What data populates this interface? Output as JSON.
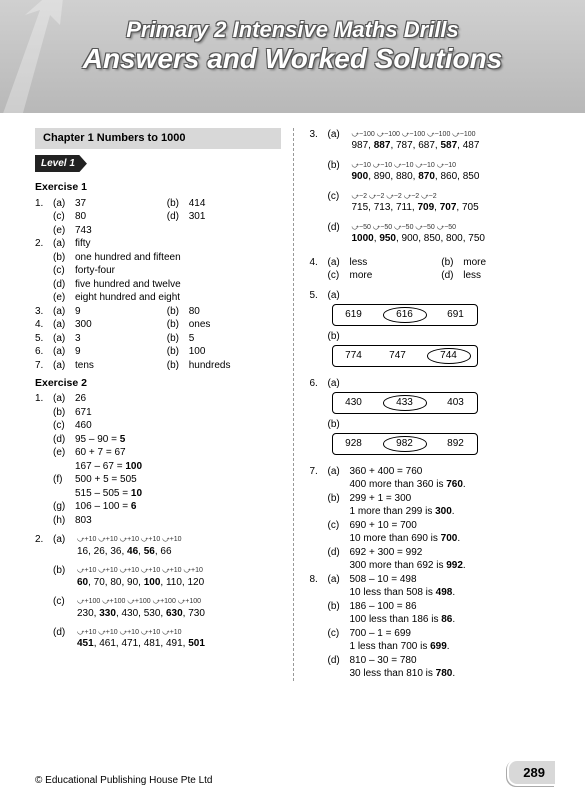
{
  "header": {
    "title1": "Primary 2 Intensive Maths Drills",
    "title2": "Answers and Worked Solutions"
  },
  "chapter": "Chapter 1   Numbers to 1000",
  "level": "Level 1",
  "left": {
    "ex1_title": "Exercise 1",
    "ex1": [
      {
        "n": "1.",
        "parts": [
          [
            "(a)",
            "37"
          ],
          [
            "(b)",
            "414"
          ],
          [
            "(c)",
            "80"
          ],
          [
            "(d)",
            "301"
          ],
          [
            "(e)",
            "743"
          ]
        ]
      },
      {
        "n": "2.",
        "parts": [
          [
            "(a)",
            "fifty"
          ],
          [
            "(b)",
            "one hundred and fifteen"
          ],
          [
            "(c)",
            "forty-four"
          ],
          [
            "(d)",
            "five hundred and twelve"
          ],
          [
            "(e)",
            "eight hundred and eight"
          ]
        ]
      },
      {
        "n": "3.",
        "parts": [
          [
            "(a)",
            "9"
          ],
          [
            "(b)",
            "80"
          ]
        ]
      },
      {
        "n": "4.",
        "parts": [
          [
            "(a)",
            "300"
          ],
          [
            "(b)",
            "ones"
          ]
        ]
      },
      {
        "n": "5.",
        "parts": [
          [
            "(a)",
            "3"
          ],
          [
            "(b)",
            "5"
          ]
        ]
      },
      {
        "n": "6.",
        "parts": [
          [
            "(a)",
            "9"
          ],
          [
            "(b)",
            "100"
          ]
        ]
      },
      {
        "n": "7.",
        "parts": [
          [
            "(a)",
            "tens"
          ],
          [
            "(b)",
            "hundreds"
          ]
        ]
      }
    ],
    "ex2_title": "Exercise 2",
    "ex2_q1": [
      [
        "(a)",
        "26"
      ],
      [
        "(b)",
        "671"
      ],
      [
        "(c)",
        "460"
      ],
      [
        "(d)",
        "95 – 90 = ",
        "5"
      ],
      [
        "(e)",
        "60 + 7 = 67"
      ],
      [
        "",
        "167 – 67 = ",
        "100"
      ],
      [
        "(f)",
        "500 + 5 = 505"
      ],
      [
        "",
        "515 – 505 = ",
        "10"
      ],
      [
        "(g)",
        "106 – 100 = ",
        "6"
      ],
      [
        "(h)",
        "803"
      ]
    ],
    "ex2_q2": [
      {
        "pl": "(a)",
        "step": "+10",
        "arrows": "+10  +10  +10  +10  +10",
        "seq": "16, 26, 36, <b>46</b>, <b>56</b>, 66"
      },
      {
        "pl": "(b)",
        "step": "+10",
        "arrows": "+10  +10  +10  +10  +10  +10",
        "seq": "<b>60</b>, 70, 80, 90, <b>100</b>, 110, 120"
      },
      {
        "pl": "(c)",
        "step": "+100",
        "arrows": "+100 +100 +100 +100 +100",
        "seq": "230, <b>330</b>, 430, 530, <b>630</b>, 730"
      },
      {
        "pl": "(d)",
        "step": "+10",
        "arrows": "+10  +10  +10  +10  +10",
        "seq": "<b>451</b>, 461, 471, 481, 491, <b>501</b>"
      }
    ]
  },
  "right": {
    "q3": [
      {
        "pl": "(a)",
        "arrows": "−100 −100 −100 −100 −100",
        "seq": "987, <b>887</b>, 787, 687, <b>587</b>, 487"
      },
      {
        "pl": "(b)",
        "arrows": "−10  −10  −10  −10  −10",
        "seq": "<b>900</b>, 890, 880, <b>870</b>, 860, 850"
      },
      {
        "pl": "(c)",
        "arrows": "−2   −2   −2   −2   −2",
        "seq": "715, 713, 711, <b>709</b>, <b>707</b>, 705"
      },
      {
        "pl": "(d)",
        "arrows": "−50  −50  −50  −50  −50",
        "seq": "<b>1000</b>, <b>950</b>, 900, 850, 800, 750"
      }
    ],
    "q4": [
      [
        "(a)",
        "less"
      ],
      [
        "(b)",
        "more"
      ],
      [
        "(c)",
        "more"
      ],
      [
        "(d)",
        "less"
      ]
    ],
    "q5": [
      {
        "pl": "(a)",
        "cells": [
          "619",
          "616",
          "691"
        ],
        "circled": 1
      },
      {
        "pl": "(b)",
        "cells": [
          "774",
          "747",
          "744"
        ],
        "circled": 2
      }
    ],
    "q6": [
      {
        "pl": "(a)",
        "cells": [
          "430",
          "433",
          "403"
        ],
        "circled": 1
      },
      {
        "pl": "(b)",
        "cells": [
          "928",
          "982",
          "892"
        ],
        "circled": 1
      }
    ],
    "q7": [
      {
        "pl": "(a)",
        "l1": "360 + 400 = 760",
        "l2": "400 more than 360 is <b>760</b>."
      },
      {
        "pl": "(b)",
        "l1": "299 + 1 = 300",
        "l2": "1 more than 299 is <b>300</b>."
      },
      {
        "pl": "(c)",
        "l1": "690 + 10 = 700",
        "l2": "10 more than 690 is <b>700</b>."
      },
      {
        "pl": "(d)",
        "l1": "692 + 300 = 992",
        "l2": "300 more than 692 is <b>992</b>."
      }
    ],
    "q8": [
      {
        "pl": "(a)",
        "l1": "508 – 10 = 498",
        "l2": "10 less than 508 is <b>498</b>."
      },
      {
        "pl": "(b)",
        "l1": "186 – 100 = 86",
        "l2": "100 less than 186 is <b>86</b>."
      },
      {
        "pl": "(c)",
        "l1": "700 – 1 = 699",
        "l2": "1 less than 700 is <b>699</b>."
      },
      {
        "pl": "(d)",
        "l1": "810 – 30 = 780",
        "l2": "30 less than 810 is <b>780</b>."
      }
    ]
  },
  "footer": {
    "copyright": "© Educational Publishing House Pte Ltd",
    "page": "289"
  },
  "colors": {
    "header_grad_top": "#d0d0d0",
    "header_grad_bot": "#b8b8b8",
    "level_bg": "#222222",
    "chapter_bg": "#d8d8d8"
  }
}
